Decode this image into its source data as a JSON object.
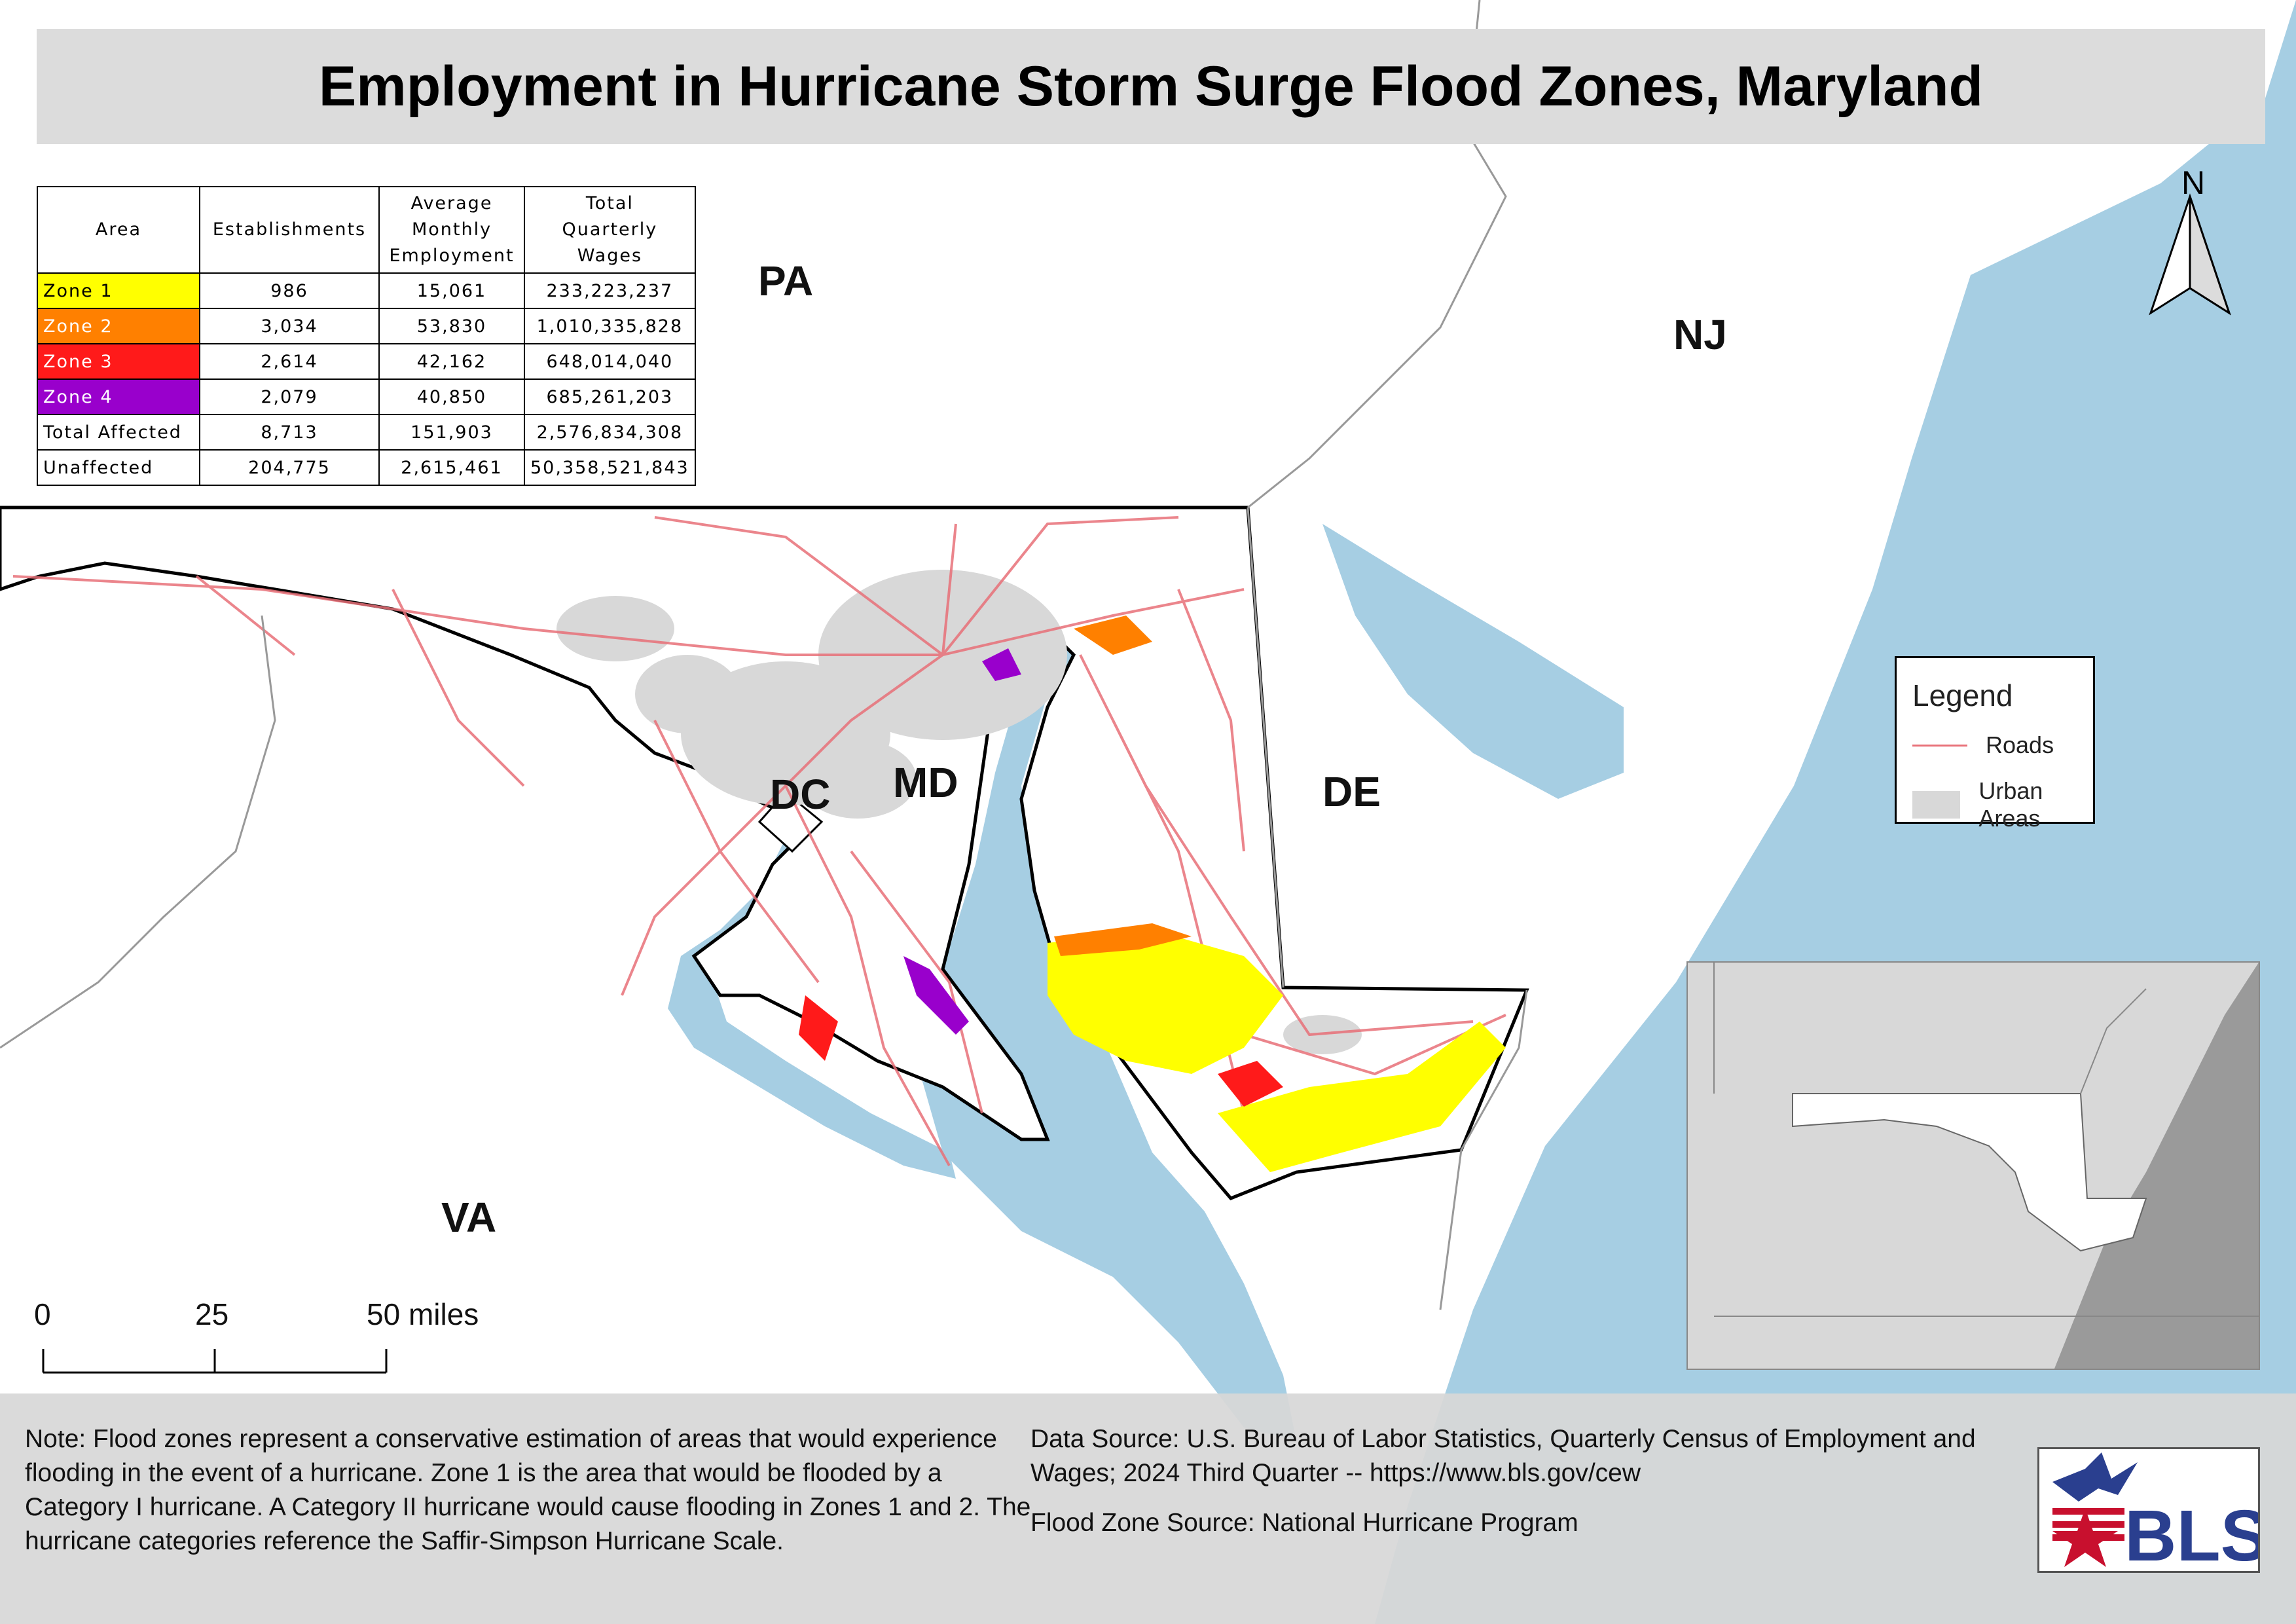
{
  "title": "Employment in Hurricane Storm Surge Flood Zones, Maryland",
  "state_labels": {
    "pa": "PA",
    "nj": "NJ",
    "de": "DE",
    "dc": "DC",
    "md": "MD",
    "va": "VA"
  },
  "north_label": "N",
  "table": {
    "headers": {
      "area": "Area",
      "establishments": "Establishments",
      "employment": [
        "Average",
        "Monthly",
        "Employment"
      ],
      "wages": [
        "Total",
        "Quarterly",
        "Wages"
      ]
    },
    "rows": [
      {
        "area": "Zone 1",
        "establishments": "986",
        "employment": "15,061",
        "wages": "233,223,237",
        "color": "#ffff00",
        "text_color": "#000000"
      },
      {
        "area": "Zone 2",
        "establishments": "3,034",
        "employment": "53,830",
        "wages": "1,010,335,828",
        "color": "#ff8000",
        "text_color": "#ffffff"
      },
      {
        "area": "Zone 3",
        "establishments": "2,614",
        "employment": "42,162",
        "wages": "648,014,040",
        "color": "#ff1a1a",
        "text_color": "#ffffff"
      },
      {
        "area": "Zone 4",
        "establishments": "2,079",
        "employment": "40,850",
        "wages": "685,261,203",
        "color": "#9900cc",
        "text_color": "#ffffff"
      },
      {
        "area": "Total Affected",
        "establishments": "8,713",
        "employment": "151,903",
        "wages": "2,576,834,308",
        "color": "#ffffff",
        "text_color": "#000000"
      },
      {
        "area": "Unaffected",
        "establishments": "204,775",
        "employment": "2,615,461",
        "wages": "50,358,521,843",
        "color": "#ffffff",
        "text_color": "#000000"
      }
    ]
  },
  "legend": {
    "title": "Legend",
    "items": [
      {
        "label": "Roads",
        "color": "#e87078"
      },
      {
        "label": "Urban Areas",
        "color": "#d8d8d8"
      }
    ]
  },
  "scale_bar": {
    "labels": [
      "0",
      "25",
      "50 miles"
    ]
  },
  "footer": {
    "note": "Note: Flood zones represent a conservative estimation of areas that would experience flooding in the event of a hurricane. Zone 1 is the area that would be flooded by a Category I hurricane. A Category II hurricane would cause flooding in Zones 1 and 2. The hurricane categories reference the Saffir-Simpson Hurricane Scale.",
    "data_source": "Data Source: U.S. Bureau of Labor Statistics, Quarterly Census of Employment and Wages; 2024 Third Quarter -- https://www.bls.gov/cew",
    "flood_source": "Flood Zone Source: National Hurricane Program"
  },
  "logo_text": "BLS",
  "colors": {
    "water": "#a6cee3",
    "road": "#e87078",
    "urban": "#d8d8d8",
    "zone1": "#ffff00",
    "zone2": "#ff8000",
    "zone3": "#ff1a1a",
    "zone4": "#9900cc"
  }
}
